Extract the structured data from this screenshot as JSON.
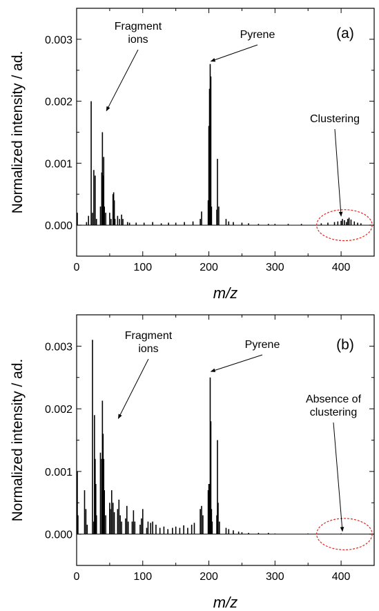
{
  "chart_data": [
    {
      "type": "bar",
      "panel_label": "(a)",
      "xlabel": "m/z",
      "ylabel": "Normalized intensity / ad.",
      "xlim": [
        0,
        450
      ],
      "ylim": [
        -0.0005,
        0.0035
      ],
      "xticks": [
        0,
        100,
        200,
        300,
        400
      ],
      "yticks": [
        0.0,
        0.001,
        0.002,
        0.003
      ],
      "ytick_labels": [
        "0.000",
        "0.001",
        "0.002",
        "0.003"
      ],
      "series": [
        {
          "x": [
            1,
            15,
            18,
            22,
            24,
            26,
            28,
            30,
            36,
            38,
            39,
            40,
            41,
            42,
            44,
            50,
            52,
            55,
            56,
            57,
            58,
            62,
            65,
            68,
            70,
            77,
            80,
            90,
            102,
            115,
            128,
            139,
            150,
            163,
            176,
            187,
            189,
            199,
            200,
            201,
            202,
            203,
            204,
            212,
            213,
            215,
            226,
            230,
            237,
            250,
            260,
            275,
            290,
            300,
            320,
            340,
            370,
            380,
            390,
            395,
            400,
            402,
            405,
            408,
            410,
            412,
            415,
            420,
            425,
            430
          ],
          "y": [
            0.0002,
            5e-05,
            0.00015,
            0.002,
            0.0002,
            0.00089,
            0.0008,
            0.0001,
            0.0003,
            0.00085,
            0.0015,
            0.0008,
            0.0011,
            0.0003,
            0.0002,
            0.0002,
            0.0001,
            0.0005,
            0.00053,
            0.0004,
            0.0001,
            0.00015,
            0.0001,
            0.00017,
            0.0001,
            5e-05,
            4e-05,
            4e-05,
            4e-05,
            5e-05,
            3e-05,
            4e-05,
            4e-05,
            5e-05,
            6e-05,
            0.0001,
            0.00022,
            0.0004,
            0.0016,
            0.0022,
            0.0026,
            0.0024,
            0.0003,
            0.00025,
            0.00107,
            0.0003,
            0.0001,
            6e-05,
            5e-05,
            4e-05,
            3e-05,
            2e-05,
            2e-05,
            2e-05,
            2e-05,
            2e-05,
            3e-05,
            4e-05,
            5e-05,
            6e-05,
            7e-05,
            0.0001,
            8e-05,
            5e-05,
            0.0001,
            0.00012,
            9e-05,
            6e-05,
            4e-05,
            3e-05
          ]
        }
      ],
      "annotations": [
        {
          "text_lines": [
            "Fragment",
            "ions"
          ],
          "target": [
            45,
            0.0018
          ]
        },
        {
          "text_lines": [
            "Pyrene"
          ],
          "target": [
            203,
            0.0026
          ]
        },
        {
          "text_lines": [
            "Clustering"
          ],
          "target": [
            400,
            0.0001
          ]
        }
      ],
      "highlight_ellipse": {
        "center": [
          405,
          0.0
        ],
        "radius": [
          42,
          0.00025
        ],
        "color": "#e8241c"
      }
    },
    {
      "type": "bar",
      "panel_label": "(b)",
      "xlabel": "m/z",
      "ylabel": "Normalized intensity / ad.",
      "xlim": [
        0,
        450
      ],
      "ylim": [
        -0.0005,
        0.0035
      ],
      "xticks": [
        0,
        100,
        200,
        300,
        400
      ],
      "yticks": [
        0.0,
        0.001,
        0.002,
        0.003
      ],
      "ytick_labels": [
        "0.000",
        "0.001",
        "0.002",
        "0.003"
      ],
      "series": [
        {
          "x": [
            1,
            2,
            12,
            14,
            16,
            24,
            26,
            27,
            28,
            29,
            30,
            36,
            38,
            39,
            40,
            41,
            42,
            44,
            50,
            51,
            53,
            55,
            57,
            62,
            64,
            66,
            68,
            74,
            76,
            78,
            84,
            86,
            88,
            96,
            98,
            100,
            106,
            108,
            112,
            115,
            120,
            126,
            132,
            138,
            145,
            150,
            156,
            162,
            168,
            174,
            178,
            187,
            189,
            191,
            199,
            200,
            201,
            202,
            203,
            204,
            205,
            212,
            213,
            214,
            216,
            226,
            230,
            237,
            245,
            250,
            260,
            275,
            290,
            300,
            350,
            400
          ],
          "y": [
            0.001,
            0.0003,
            0.0007,
            0.0004,
            0.00015,
            0.0031,
            0.0002,
            0.0019,
            0.0012,
            0.0008,
            0.0003,
            0.0013,
            0.0012,
            0.00213,
            0.0016,
            0.0012,
            0.0007,
            0.0003,
            0.0005,
            0.0004,
            0.0007,
            0.0005,
            0.00035,
            0.0004,
            0.00055,
            0.0003,
            0.0002,
            0.00025,
            0.00045,
            0.0002,
            0.0002,
            0.00038,
            0.0002,
            0.00015,
            0.00025,
            0.0004,
            0.0001,
            0.0002,
            0.00018,
            0.0002,
            0.00015,
            0.0001,
            0.00012,
            8e-05,
            0.0001,
            0.00012,
            0.0001,
            0.00014,
            0.0001,
            0.00015,
            0.00018,
            0.0004,
            0.00045,
            0.0003,
            0.0007,
            0.0008,
            0.0008,
            0.0025,
            0.0018,
            0.0004,
            0.0002,
            0.0003,
            0.0015,
            0.0005,
            0.0002,
            0.0001,
            8e-05,
            6e-05,
            4e-05,
            3e-05,
            2e-05,
            2e-05,
            2e-05,
            1e-05,
            1e-05,
            1e-05
          ]
        }
      ],
      "annotations": [
        {
          "text_lines": [
            "Fragment",
            "ions"
          ],
          "target": [
            63,
            0.0018
          ]
        },
        {
          "text_lines": [
            "Pyrene"
          ],
          "target": [
            203,
            0.00255
          ]
        },
        {
          "text_lines": [
            "Absence of",
            "clustering"
          ],
          "target": [
            402,
            0.0
          ]
        }
      ],
      "highlight_ellipse": {
        "center": [
          405,
          0.0
        ],
        "radius": [
          42,
          0.00025
        ],
        "color": "#e8241c"
      }
    }
  ]
}
